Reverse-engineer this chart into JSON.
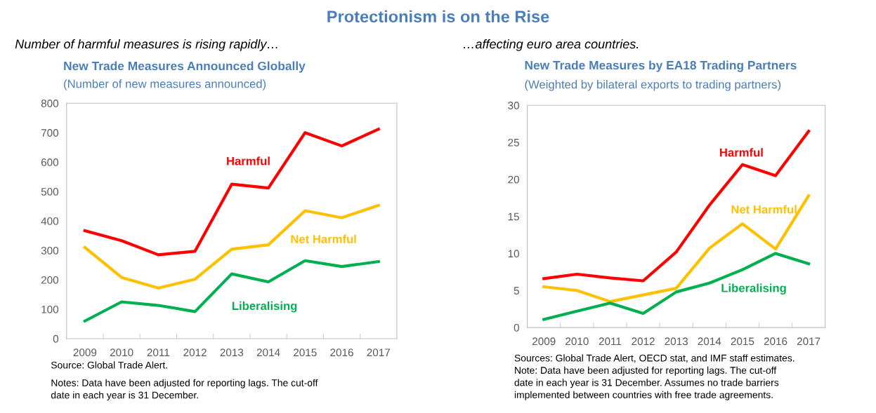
{
  "chart_data": [
    {
      "type": "line",
      "title": "New Trade Measures Announced Globally",
      "subtitle": "(Number of new measures announced)",
      "categories": [
        "2009",
        "2010",
        "2011",
        "2012",
        "2013",
        "2014",
        "2015",
        "2016",
        "2017"
      ],
      "series": [
        {
          "name": "Harmful",
          "color": "#ff0000",
          "values": [
            367,
            333,
            285,
            297,
            525,
            512,
            700,
            655,
            712
          ]
        },
        {
          "name": "Net Harmful",
          "color": "#ffc000",
          "values": [
            310,
            208,
            172,
            202,
            304,
            319,
            435,
            411,
            453
          ]
        },
        {
          "name": "Liberalising",
          "color": "#00b050",
          "values": [
            60,
            125,
            113,
            92,
            220,
            193,
            265,
            245,
            262
          ]
        }
      ],
      "ylim": [
        0,
        800
      ],
      "yticks": [
        0,
        100,
        200,
        300,
        400,
        500,
        600,
        700,
        800
      ],
      "grid": false,
      "legend": false,
      "marker": "none",
      "line_style": "solid",
      "annotations": [
        "Protectionism is on the Rise",
        "Number of harmful measures is rising rapidly…",
        "Source: Global Trade Alert.",
        "Notes: Data have been adjusted for reporting lags. The cut-off\ndate in each year is 31 December."
      ]
    },
    {
      "type": "line",
      "title": "New Trade Measures by EA18 Trading Partners",
      "subtitle": "(Weighted by bilateral exports to trading partners)",
      "categories": [
        "2009",
        "2010",
        "2011",
        "2012",
        "2013",
        "2014",
        "2015",
        "2016",
        "2017"
      ],
      "series": [
        {
          "name": "Harmful",
          "color": "#ff0000",
          "values": [
            6.6,
            7.2,
            6.7,
            6.3,
            10.2,
            16.5,
            22.0,
            20.5,
            26.5
          ]
        },
        {
          "name": "Net Harmful",
          "color": "#ffc000",
          "values": [
            5.5,
            5.0,
            3.5,
            4.4,
            5.3,
            10.7,
            14.0,
            10.6,
            17.8
          ]
        },
        {
          "name": "Liberalising",
          "color": "#00b050",
          "values": [
            1.1,
            2.2,
            3.3,
            1.9,
            4.8,
            6.0,
            7.8,
            10.0,
            8.6
          ]
        }
      ],
      "ylim": [
        0,
        30
      ],
      "yticks": [
        0,
        5,
        10,
        15,
        20,
        25,
        30
      ],
      "grid": false,
      "legend": false,
      "marker": "none",
      "line_style": "solid",
      "annotations": [
        "…affecting euro area countries.",
        "Sources: Global Trade Alert, OECD stat, and IMF staff estimates.\nNote: Data have been adjusted for reporting lags. The cut-off\ndate in each year is 31 December. Assumes no trade barriers\nimplemented between countries with free trade agreements."
      ]
    }
  ]
}
